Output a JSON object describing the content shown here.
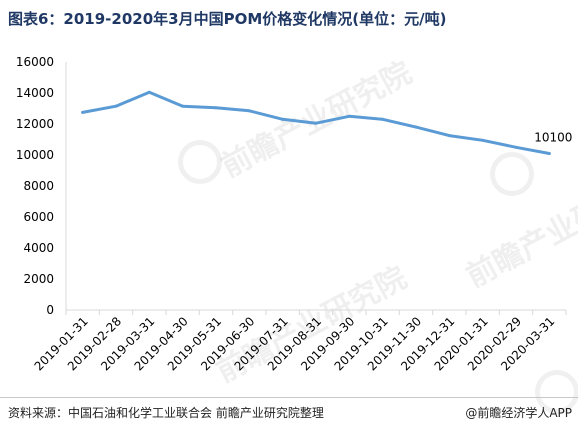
{
  "title": "图表6：2019-2020年3月中国POM价格变化情况(单位：元/吨)",
  "source": "资料来源：中国石油和化学工业联合会 前瞻产业研究院整理",
  "credit": "@前瞻经济学人APP",
  "watermark": "前瞻产业研究院",
  "colors": {
    "line": "#5b9bd5",
    "title": "#1f3864",
    "axis": "#d9d9d9"
  },
  "chart_data": {
    "type": "line",
    "categories": [
      "2019-01-31",
      "2019-02-28",
      "2019-03-31",
      "2019-04-30",
      "2019-05-31",
      "2019-06-30",
      "2019-07-31",
      "2019-08-31",
      "2019-09-30",
      "2019-10-31",
      "2019-11-30",
      "2019-12-31",
      "2020-01-31",
      "2020-02-29",
      "2020-03-31"
    ],
    "series": [
      {
        "values": [
          12750,
          13150,
          14050,
          13150,
          13050,
          12850,
          12300,
          12050,
          12500,
          12300,
          11800,
          11250,
          10950,
          10500,
          10100
        ]
      }
    ],
    "ylim": [
      0,
      16000
    ],
    "yticks": [
      0,
      2000,
      4000,
      6000,
      8000,
      10000,
      12000,
      14000,
      16000
    ],
    "data_labels": [
      {
        "index": 14,
        "text": "10100"
      }
    ],
    "grid": false,
    "legend": "none"
  }
}
